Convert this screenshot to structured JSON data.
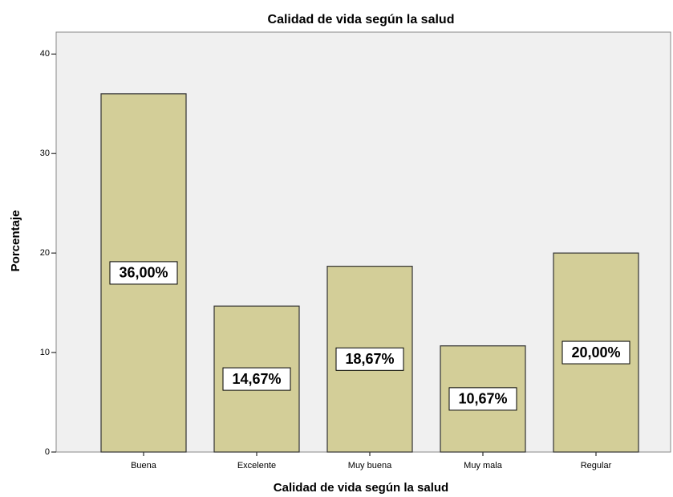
{
  "chart_data": {
    "type": "bar",
    "title": "Calidad de vida según la salud",
    "x_label": "Calidad de vida según la salud",
    "y_label": "Porcentaje",
    "categories": [
      "Buena",
      "Excelente",
      "Muy buena",
      "Muy mala",
      "Regular"
    ],
    "values": [
      36,
      14.67,
      18.67,
      10.67,
      20
    ],
    "value_labels": [
      "36,00%",
      "14,67%",
      "18,67%",
      "10,67%",
      "20,00%"
    ],
    "color": "#d3ce98",
    "ylim": [
      0,
      42.2
    ],
    "yticks": [
      0,
      10,
      20,
      30,
      40
    ]
  }
}
